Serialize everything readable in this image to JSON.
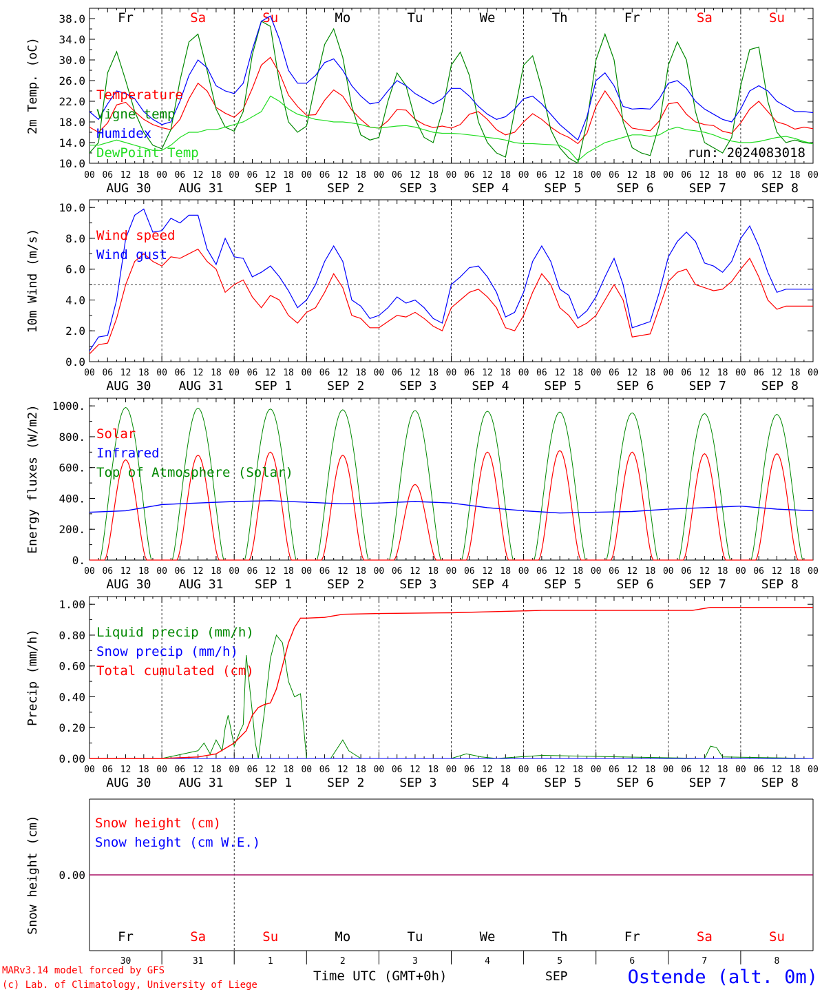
{
  "colors": {
    "red": "#ff0000",
    "blue": "#0000ff",
    "green": "#008800",
    "lightgreen": "#22dd22",
    "purple": "#800080",
    "black": "#000000"
  },
  "x_axis": {
    "hour_ticks": [
      "00",
      "06",
      "12",
      "18"
    ],
    "final_tick": "00",
    "dates": [
      "AUG 30",
      "AUG 31",
      "SEP  1",
      "SEP  2",
      "SEP  3",
      "SEP  4",
      "SEP  5",
      "SEP  6",
      "SEP  7",
      "SEP  8"
    ],
    "weekdays": [
      "Fr",
      "Sa",
      "Su",
      "Mo",
      "Tu",
      "We",
      "Th",
      "Fr",
      "Sa",
      "Su"
    ],
    "weekday_colors": [
      "black",
      "red",
      "red",
      "black",
      "black",
      "black",
      "black",
      "black",
      "red",
      "red"
    ],
    "day_numbers": [
      "30",
      "31",
      "1",
      "2",
      "3",
      "4",
      "5",
      "6",
      "7",
      "8"
    ],
    "month_label": "SEP",
    "axis_title": "Time UTC (GMT+0h)"
  },
  "footer": {
    "credit1": "MARv3.14 model forced by GFS",
    "credit2": "(c) Lab. of Climatology, University of Liege",
    "station": "Ostende (alt. 0m)"
  },
  "chart_data": [
    {
      "type": "line",
      "ylabel": "2m Temp. (oC)",
      "ylim": [
        10,
        40
      ],
      "yticks": [
        "10.0",
        "14.0",
        "18.0",
        "22.0",
        "26.0",
        "30.0",
        "34.0",
        "38.0"
      ],
      "annotation": "run: 2024083018",
      "x": [
        0,
        3,
        6,
        9,
        12,
        15,
        18,
        21,
        24,
        27,
        30,
        33,
        36,
        39,
        42,
        45,
        48,
        51,
        54,
        57,
        60,
        63,
        66,
        69,
        72,
        75,
        78,
        81,
        84,
        87,
        90,
        93,
        96,
        99,
        102,
        105,
        108,
        111,
        114,
        117,
        120,
        123,
        126,
        129,
        132,
        135,
        138,
        141,
        144,
        147,
        150,
        153,
        156,
        159,
        162,
        165,
        168,
        171,
        174,
        177,
        180,
        183,
        186,
        189,
        192,
        195,
        198,
        201,
        204,
        207,
        210,
        213,
        216,
        219,
        222,
        225,
        228,
        231,
        234,
        237,
        240
      ],
      "series": [
        {
          "name": "Temperature",
          "color": "red",
          "values": [
            17.0,
            16.0,
            17.8,
            21.3,
            21.8,
            20.0,
            18.5,
            17.5,
            16.9,
            16.5,
            18.5,
            22.5,
            25.5,
            24.0,
            20.8,
            19.7,
            18.9,
            20.5,
            24.5,
            29.0,
            30.5,
            27.5,
            23.2,
            21.0,
            19.3,
            19.4,
            22.2,
            24.2,
            23.0,
            20.3,
            18.5,
            17.0,
            16.8,
            18.2,
            20.4,
            20.3,
            18.5,
            17.5,
            16.9,
            17.2,
            16.8,
            17.5,
            19.5,
            20.0,
            18.5,
            16.5,
            15.5,
            16.0,
            18.0,
            19.6,
            18.5,
            17.0,
            15.8,
            15.0,
            13.8,
            15.8,
            21.0,
            24.0,
            21.5,
            18.5,
            16.8,
            16.5,
            16.3,
            18.2,
            21.5,
            21.8,
            19.5,
            18.0,
            17.5,
            17.3,
            16.2,
            15.8,
            17.8,
            20.5,
            22.0,
            20.0,
            18.0,
            17.5,
            16.6,
            17.0,
            16.7
          ]
        },
        {
          "name": "Vigne temp",
          "color": "green",
          "values": [
            12.0,
            14.0,
            27.5,
            31.6,
            26.0,
            20.0,
            16.0,
            13.5,
            12.8,
            16.5,
            26.0,
            33.5,
            35.0,
            28.0,
            20.5,
            17.0,
            16.2,
            20.0,
            31.0,
            37.5,
            36.5,
            25.5,
            18.0,
            16.0,
            17.2,
            25.5,
            33.0,
            36.0,
            30.5,
            21.0,
            15.5,
            14.5,
            15.0,
            22.0,
            27.5,
            25.0,
            18.5,
            15.0,
            14.0,
            20.0,
            29.0,
            31.5,
            27.0,
            18.0,
            14.0,
            12.0,
            11.2,
            20.0,
            29.0,
            30.8,
            24.5,
            16.5,
            13.0,
            11.0,
            10.0,
            18.0,
            30.0,
            35.0,
            30.0,
            18.0,
            13.0,
            12.0,
            11.5,
            17.5,
            29.0,
            33.5,
            30.0,
            20.0,
            14.0,
            13.0,
            12.0,
            15.0,
            25.0,
            32.0,
            32.5,
            22.0,
            16.0,
            14.0,
            14.5,
            14.0,
            13.8
          ]
        },
        {
          "name": "Humidex",
          "color": "blue",
          "values": [
            20.0,
            18.5,
            21.5,
            24.0,
            23.5,
            22.5,
            20.0,
            18.5,
            17.5,
            18.0,
            22.0,
            27.0,
            30.0,
            28.5,
            25.0,
            24.0,
            23.5,
            25.5,
            32.0,
            37.5,
            38.5,
            34.0,
            28.0,
            25.5,
            25.5,
            27.0,
            29.5,
            30.2,
            28.0,
            25.0,
            23.0,
            21.5,
            21.8,
            24.0,
            26.0,
            25.0,
            23.5,
            22.5,
            21.5,
            22.5,
            24.5,
            24.5,
            23.0,
            21.0,
            19.5,
            18.5,
            19.0,
            20.5,
            22.5,
            23.0,
            21.5,
            19.5,
            17.5,
            16.0,
            14.5,
            19.0,
            26.0,
            27.5,
            25.0,
            21.0,
            20.5,
            20.6,
            20.5,
            22.5,
            25.5,
            26.0,
            24.5,
            22.0,
            20.5,
            19.5,
            18.5,
            18.0,
            20.5,
            24.0,
            25.0,
            24.0,
            22.0,
            21.0,
            20.0,
            20.0,
            19.8
          ]
        },
        {
          "name": "DewPoint Temp",
          "color": "lightgreen",
          "values": [
            13.5,
            13.5,
            14.0,
            14.5,
            14.0,
            13.5,
            13.0,
            12.5,
            12.5,
            13.5,
            15.0,
            16.0,
            16.0,
            16.5,
            16.5,
            17.0,
            17.5,
            18.0,
            19.0,
            20.0,
            23.0,
            22.0,
            20.5,
            19.5,
            19.0,
            18.5,
            18.3,
            18.0,
            18.0,
            17.8,
            17.5,
            17.0,
            16.8,
            17.0,
            17.2,
            17.3,
            17.0,
            16.5,
            16.0,
            15.8,
            15.8,
            15.7,
            15.5,
            15.3,
            15.0,
            14.8,
            14.5,
            14.0,
            13.8,
            13.8,
            13.7,
            13.6,
            13.5,
            12.5,
            10.5,
            12.0,
            13.0,
            14.0,
            14.5,
            15.0,
            15.5,
            15.5,
            15.2,
            15.5,
            16.5,
            17.0,
            16.5,
            16.3,
            16.0,
            15.5,
            14.8,
            14.3,
            14.0,
            14.0,
            14.2,
            14.6,
            15.0,
            15.2,
            14.8,
            14.2,
            13.8
          ]
        }
      ]
    },
    {
      "type": "line",
      "ylabel": "10m Wind (m/s)",
      "ylim": [
        0,
        10
      ],
      "yticks": [
        "0.0",
        "2.0",
        "4.0",
        "6.0",
        "8.0",
        "10.0"
      ],
      "reference_line": 5,
      "x": [
        0,
        3,
        6,
        9,
        12,
        15,
        18,
        21,
        24,
        27,
        30,
        33,
        36,
        39,
        42,
        45,
        48,
        51,
        54,
        57,
        60,
        63,
        66,
        69,
        72,
        75,
        78,
        81,
        84,
        87,
        90,
        93,
        96,
        99,
        102,
        105,
        108,
        111,
        114,
        117,
        120,
        123,
        126,
        129,
        132,
        135,
        138,
        141,
        144,
        147,
        150,
        153,
        156,
        159,
        162,
        165,
        168,
        171,
        174,
        177,
        180,
        183,
        186,
        189,
        192,
        195,
        198,
        201,
        204,
        207,
        210,
        213,
        216,
        219,
        222,
        225,
        228,
        231,
        234,
        237,
        240
      ],
      "series": [
        {
          "name": "Wind speed",
          "color": "red",
          "values": [
            0.5,
            1.1,
            1.2,
            2.8,
            5.0,
            6.5,
            7.0,
            6.5,
            6.2,
            6.8,
            6.7,
            7.0,
            7.3,
            6.5,
            6.0,
            4.5,
            5.0,
            5.3,
            4.2,
            3.5,
            4.3,
            4.0,
            3.0,
            2.5,
            3.2,
            3.5,
            4.5,
            5.7,
            4.8,
            3.0,
            2.8,
            2.2,
            2.2,
            2.6,
            3.0,
            2.9,
            3.2,
            2.8,
            2.3,
            2.0,
            3.5,
            4.0,
            4.5,
            4.7,
            4.2,
            3.5,
            2.2,
            2.0,
            3.0,
            4.5,
            5.7,
            5.0,
            3.5,
            3.0,
            2.2,
            2.5,
            3.0,
            4.0,
            5.0,
            4.0,
            1.6,
            1.7,
            1.8,
            3.5,
            5.2,
            5.8,
            6.0,
            5.0,
            4.8,
            4.6,
            4.7,
            5.2,
            6.0,
            6.7,
            5.5,
            4.0,
            3.4,
            3.6,
            3.6,
            3.6,
            3.6
          ]
        },
        {
          "name": "Wind gust",
          "color": "blue",
          "values": [
            0.7,
            1.6,
            1.7,
            4.0,
            8.0,
            9.5,
            9.9,
            8.4,
            8.5,
            9.3,
            9.0,
            9.5,
            9.5,
            7.3,
            6.3,
            8.0,
            6.8,
            6.7,
            5.5,
            5.8,
            6.2,
            5.5,
            4.6,
            3.5,
            4.0,
            5.0,
            6.5,
            7.5,
            6.5,
            4.0,
            3.6,
            2.8,
            3.0,
            3.5,
            4.2,
            3.8,
            4.0,
            3.5,
            2.8,
            2.5,
            5.0,
            5.5,
            6.1,
            6.2,
            5.5,
            4.5,
            2.9,
            3.2,
            4.5,
            6.5,
            7.5,
            6.5,
            4.7,
            4.3,
            2.8,
            3.3,
            4.2,
            5.5,
            6.7,
            5.0,
            2.2,
            2.4,
            2.6,
            4.5,
            6.8,
            7.8,
            8.4,
            7.8,
            6.4,
            6.2,
            5.8,
            6.5,
            8.0,
            8.8,
            7.5,
            5.8,
            4.5,
            4.7,
            4.7,
            4.7,
            4.7
          ]
        }
      ]
    },
    {
      "type": "line",
      "ylabel": "Energy fluxes (W/m2)",
      "ylim": [
        0,
        1000
      ],
      "yticks": [
        "0.",
        "200.",
        "400.",
        "600.",
        "800.",
        "1000."
      ],
      "series": [
        {
          "name": "Solar",
          "color": "red",
          "peak_values": [
            650,
            680,
            700,
            680,
            490,
            700,
            710,
            700,
            690,
            690
          ]
        },
        {
          "name": "Infrared",
          "color": "blue",
          "x": [
            0,
            12,
            24,
            36,
            48,
            60,
            72,
            84,
            96,
            108,
            120,
            132,
            144,
            156,
            168,
            180,
            192,
            204,
            216,
            228,
            240
          ],
          "values": [
            310,
            320,
            360,
            370,
            380,
            385,
            375,
            365,
            370,
            380,
            370,
            340,
            320,
            305,
            310,
            315,
            330,
            340,
            350,
            330,
            320
          ]
        },
        {
          "name": "Top of Atmosphere (Solar)",
          "color": "green",
          "peak_values": [
            990,
            985,
            980,
            975,
            970,
            965,
            960,
            955,
            950,
            945
          ]
        }
      ]
    },
    {
      "type": "line",
      "ylabel": "Precip (mm/h)",
      "ylim": [
        0,
        1.0
      ],
      "yticks": [
        "0.00",
        "0.20",
        "0.40",
        "0.60",
        "0.80",
        "1.00"
      ],
      "series": [
        {
          "name": "Liquid precip (mm/h)",
          "color": "green",
          "x": [
            0,
            24,
            36,
            38,
            40,
            42,
            44,
            45,
            46,
            48,
            50,
            51,
            52,
            54,
            55,
            56,
            58,
            60,
            62,
            64,
            66,
            68,
            70,
            72,
            80,
            84,
            86,
            90,
            120,
            125,
            130,
            135,
            150,
            204,
            206,
            208,
            210,
            240
          ],
          "values": [
            0,
            0,
            0.05,
            0.1,
            0.03,
            0.12,
            0.05,
            0.2,
            0.28,
            0.08,
            0.18,
            0.22,
            0.67,
            0.3,
            0.1,
            0,
            0.3,
            0.65,
            0.8,
            0.75,
            0.5,
            0.4,
            0.42,
            0,
            0,
            0.12,
            0.05,
            0,
            0,
            0.03,
            0.01,
            0,
            0.02,
            0,
            0.08,
            0.07,
            0.01,
            0
          ]
        },
        {
          "name": "Snow precip (mm/h)",
          "color": "blue",
          "x": [
            0,
            240
          ],
          "values": [
            0,
            0
          ]
        },
        {
          "name": "Total cumulated (cm)",
          "color": "red",
          "x": [
            0,
            24,
            36,
            42,
            48,
            52,
            54,
            56,
            58,
            60,
            62,
            64,
            66,
            68,
            70,
            72,
            78,
            84,
            96,
            120,
            150,
            200,
            206,
            240
          ],
          "values": [
            0,
            0,
            0.01,
            0.03,
            0.1,
            0.18,
            0.28,
            0.33,
            0.35,
            0.36,
            0.45,
            0.6,
            0.75,
            0.85,
            0.91,
            0.91,
            0.915,
            0.935,
            0.94,
            0.945,
            0.96,
            0.96,
            0.98,
            0.98
          ]
        }
      ]
    },
    {
      "type": "line",
      "ylabel": "Snow height (cm)",
      "yticks": [
        "0.00"
      ],
      "series": [
        {
          "name": "Snow height (cm)",
          "color": "red",
          "x": [
            0,
            240
          ],
          "values": [
            0,
            0
          ]
        },
        {
          "name": "Snow height (cm W.E.)",
          "color": "blue",
          "x": [
            0,
            240
          ],
          "values": [
            0,
            0
          ]
        }
      ]
    }
  ]
}
